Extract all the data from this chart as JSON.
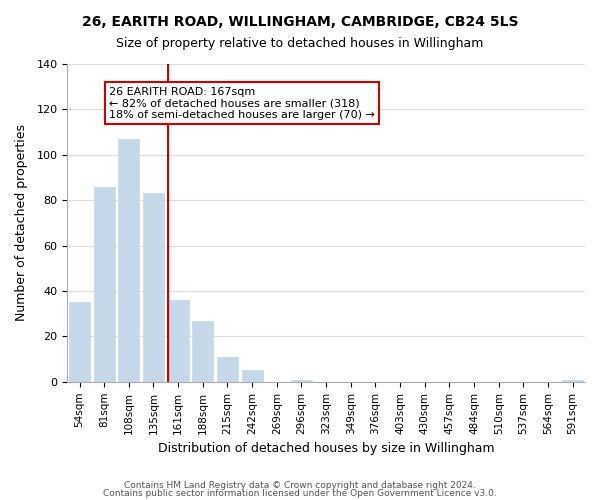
{
  "title1": "26, EARITH ROAD, WILLINGHAM, CAMBRIDGE, CB24 5LS",
  "title2": "Size of property relative to detached houses in Willingham",
  "xlabel": "Distribution of detached houses by size in Willingham",
  "ylabel": "Number of detached properties",
  "bar_labels": [
    "54sqm",
    "81sqm",
    "108sqm",
    "135sqm",
    "161sqm",
    "188sqm",
    "215sqm",
    "242sqm",
    "269sqm",
    "296sqm",
    "323sqm",
    "349sqm",
    "376sqm",
    "403sqm",
    "430sqm",
    "457sqm",
    "484sqm",
    "510sqm",
    "537sqm",
    "564sqm",
    "591sqm"
  ],
  "bar_values": [
    35,
    86,
    107,
    83,
    36,
    27,
    11,
    5,
    0,
    1,
    0,
    0,
    0,
    0,
    0,
    0,
    0,
    0,
    0,
    0,
    1
  ],
  "bar_color": "#c5d8ea",
  "highlight_bar_index": 4,
  "highlight_bar_color": "#c5d8ea",
  "vline_x": 4,
  "vline_color": "#cc0000",
  "annotation_text": "26 EARITH ROAD: 167sqm\n← 82% of detached houses are smaller (318)\n18% of semi-detached houses are larger (70) →",
  "annotation_box_color": "#ffffff",
  "annotation_box_edgecolor": "#cc0000",
  "ylim": [
    0,
    140
  ],
  "yticks": [
    0,
    20,
    40,
    60,
    80,
    100,
    120,
    140
  ],
  "footer1": "Contains HM Land Registry data © Crown copyright and database right 2024.",
  "footer2": "Contains public sector information licensed under the Open Government Licence v3.0.",
  "background_color": "#ffffff",
  "grid_color": "#dddddd"
}
